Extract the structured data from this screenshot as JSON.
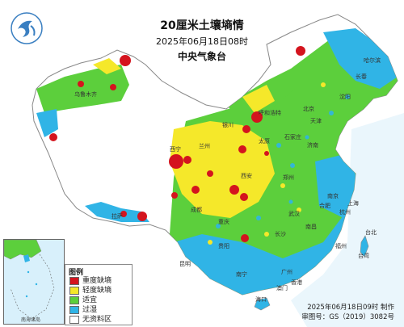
{
  "title": "20厘米土壤墒情",
  "subtitle": "2025年06月18日08时",
  "issuer": "中央气象台",
  "legend": {
    "title": "图例",
    "items": [
      {
        "label": "重度缺墒",
        "color": "#d4141e"
      },
      {
        "label": "轻度缺墒",
        "color": "#f5e82a"
      },
      {
        "label": "适宜",
        "color": "#5ccf3c"
      },
      {
        "label": "过湿",
        "color": "#30b4e6"
      },
      {
        "label": "无资料区",
        "color": "#ffffff"
      }
    ]
  },
  "footer": {
    "made": "2025年06月18日09时 制作",
    "approval": "审图号：GS（2019）3082号"
  },
  "inset_label": "南海诸岛",
  "place_labels": [
    "北京",
    "天津",
    "上海",
    "南京",
    "武汉",
    "长沙",
    "广州",
    "香港",
    "澳门",
    "海口",
    "台北",
    "台湾",
    "南昌",
    "福州",
    "杭州",
    "合肥",
    "郑州",
    "济南",
    "石家庄",
    "太原",
    "西安",
    "重庆",
    "成都",
    "昆明",
    "贵阳",
    "南宁",
    "拉萨",
    "兰州",
    "西宁",
    "银川",
    "沈阳",
    "长春",
    "哈尔滨",
    "呼和浩特",
    "乌鲁木齐"
  ]
}
